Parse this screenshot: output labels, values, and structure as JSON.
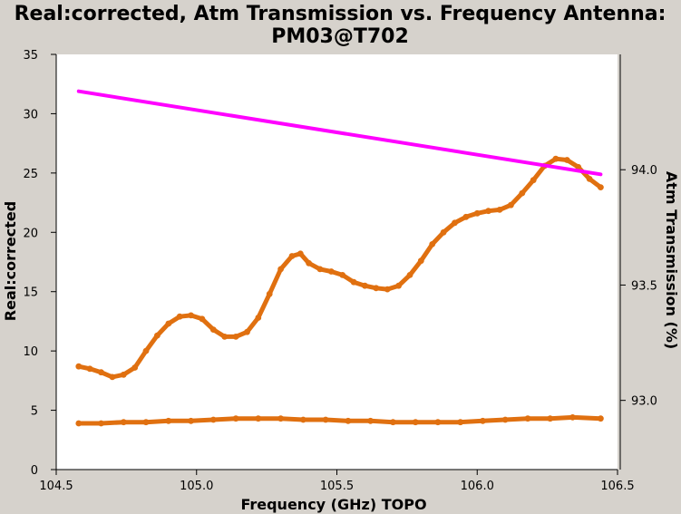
{
  "chart_data": {
    "type": "scatter",
    "title_line1": "Real:corrected, Atm Transmission vs. Frequency Antenna:",
    "title_line2": "PM03@T702",
    "xlabel": "Frequency (GHz) TOPO",
    "ylabel": "Real:corrected",
    "y2label": "Atm Transmission (%)",
    "xlim": [
      104.5,
      106.5
    ],
    "ylim": [
      0,
      35
    ],
    "y2lim": [
      92.7,
      94.5
    ],
    "x_ticks": [
      104.5,
      105.0,
      105.5,
      106.0,
      106.5
    ],
    "x_tick_labels": [
      "104.5",
      "105.0",
      "105.5",
      "106.0",
      "106.5"
    ],
    "y_ticks": [
      0,
      5,
      10,
      15,
      20,
      25,
      30,
      35
    ],
    "y_tick_labels": [
      "0",
      "5",
      "10",
      "15",
      "20",
      "25",
      "30",
      "35"
    ],
    "y2_ticks": [
      93.0,
      93.5,
      94.0
    ],
    "y2_tick_labels": [
      "93.0",
      "93.5",
      "94.0"
    ],
    "grid": false,
    "colors": {
      "data": "#e07010",
      "atm": "#ff00ff",
      "background": "#d6d2cc",
      "plot_bg": "#ffffff"
    },
    "series": [
      {
        "axis": "left",
        "x": [
          104.58,
          104.62,
          104.66,
          104.7,
          104.74,
          104.78,
          104.82,
          104.86,
          104.9,
          104.94,
          104.98,
          105.02,
          105.06,
          105.1,
          105.14,
          105.18,
          105.22,
          105.26,
          105.3,
          105.34,
          105.37,
          105.4,
          105.44,
          105.48,
          105.52,
          105.56,
          105.6,
          105.64,
          105.68,
          105.72,
          105.76,
          105.8,
          105.84,
          105.88,
          105.92,
          105.96,
          106.0,
          106.04,
          106.08,
          106.12,
          106.16,
          106.2,
          106.24,
          106.28,
          106.32,
          106.36,
          106.4,
          106.44
        ],
        "y": [
          8.7,
          8.5,
          8.2,
          7.8,
          8.0,
          8.6,
          10.0,
          11.3,
          12.3,
          12.9,
          13.0,
          12.7,
          11.8,
          11.2,
          11.2,
          11.6,
          12.8,
          14.8,
          16.9,
          18.0,
          18.2,
          17.4,
          16.9,
          16.7,
          16.4,
          15.8,
          15.5,
          15.3,
          15.2,
          15.5,
          16.4,
          17.6,
          19.0,
          20.0,
          20.8,
          21.3,
          21.6,
          21.8,
          21.9,
          22.3,
          23.3,
          24.4,
          25.6,
          26.2,
          26.1,
          25.5,
          24.5,
          23.8
        ]
      },
      {
        "axis": "left",
        "x": [
          104.58,
          104.66,
          104.74,
          104.82,
          104.9,
          104.98,
          105.06,
          105.14,
          105.22,
          105.3,
          105.38,
          105.46,
          105.54,
          105.62,
          105.7,
          105.78,
          105.86,
          105.94,
          106.02,
          106.1,
          106.18,
          106.26,
          106.34,
          106.44
        ],
        "y": [
          3.9,
          3.9,
          4.0,
          4.0,
          4.1,
          4.1,
          4.2,
          4.3,
          4.3,
          4.3,
          4.2,
          4.2,
          4.1,
          4.1,
          4.0,
          4.0,
          4.0,
          4.0,
          4.1,
          4.2,
          4.3,
          4.3,
          4.4,
          4.3
        ]
      },
      {
        "axis": "right",
        "x": [
          104.58,
          106.44
        ],
        "y": [
          94.34,
          93.98
        ]
      }
    ]
  }
}
